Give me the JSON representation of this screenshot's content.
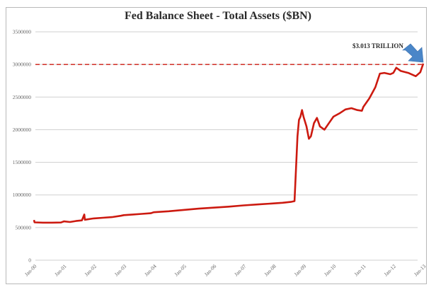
{
  "chart_data": {
    "type": "line",
    "title": "Fed Balance Sheet - Total Assets ($BN)",
    "xlabel": "",
    "ylabel": "",
    "ylim": [
      0,
      3500000
    ],
    "yticks": [
      0,
      500000,
      1000000,
      1500000,
      2000000,
      2500000,
      3000000,
      3500000
    ],
    "ytick_labels": [
      "0",
      "500000",
      "1000000",
      "1500000",
      "2000000",
      "2500000",
      "3000000",
      "3500000"
    ],
    "xtick_labels": [
      "Jan-00",
      "Jan-01",
      "Jan-02",
      "Jan-03",
      "Jan-04",
      "Jan-05",
      "Jan-06",
      "Jan-07",
      "Jan-08",
      "Jan-09",
      "Jan-10",
      "Jan-11",
      "Jan-12",
      "Jan-13"
    ],
    "grid": true,
    "legend": null,
    "series": [
      {
        "name": "Total Assets",
        "color": "#cc1a10",
        "points": [
          [
            2000.0,
            615000
          ],
          [
            2000.02,
            580000
          ],
          [
            2000.3,
            575000
          ],
          [
            2000.6,
            575000
          ],
          [
            2000.9,
            578000
          ],
          [
            2001.0,
            595000
          ],
          [
            2001.2,
            585000
          ],
          [
            2001.4,
            600000
          ],
          [
            2001.6,
            610000
          ],
          [
            2001.68,
            700000
          ],
          [
            2001.7,
            620000
          ],
          [
            2002.0,
            640000
          ],
          [
            2002.3,
            650000
          ],
          [
            2002.6,
            660000
          ],
          [
            2002.9,
            680000
          ],
          [
            2003.0,
            690000
          ],
          [
            2003.3,
            700000
          ],
          [
            2003.6,
            710000
          ],
          [
            2003.9,
            720000
          ],
          [
            2004.0,
            735000
          ],
          [
            2004.5,
            750000
          ],
          [
            2005.0,
            770000
          ],
          [
            2005.5,
            790000
          ],
          [
            2006.0,
            805000
          ],
          [
            2006.5,
            820000
          ],
          [
            2007.0,
            840000
          ],
          [
            2007.5,
            855000
          ],
          [
            2008.0,
            870000
          ],
          [
            2008.3,
            880000
          ],
          [
            2008.6,
            895000
          ],
          [
            2008.7,
            905000
          ],
          [
            2008.75,
            1400000
          ],
          [
            2008.8,
            1900000
          ],
          [
            2008.85,
            2150000
          ],
          [
            2008.9,
            2200000
          ],
          [
            2008.95,
            2300000
          ],
          [
            2009.0,
            2200000
          ],
          [
            2009.1,
            2050000
          ],
          [
            2009.18,
            1860000
          ],
          [
            2009.25,
            1900000
          ],
          [
            2009.35,
            2100000
          ],
          [
            2009.45,
            2180000
          ],
          [
            2009.55,
            2050000
          ],
          [
            2009.7,
            2000000
          ],
          [
            2009.85,
            2100000
          ],
          [
            2010.0,
            2200000
          ],
          [
            2010.2,
            2250000
          ],
          [
            2010.4,
            2310000
          ],
          [
            2010.6,
            2330000
          ],
          [
            2010.8,
            2300000
          ],
          [
            2010.95,
            2290000
          ],
          [
            2011.0,
            2350000
          ],
          [
            2011.2,
            2480000
          ],
          [
            2011.4,
            2650000
          ],
          [
            2011.55,
            2860000
          ],
          [
            2011.7,
            2870000
          ],
          [
            2011.9,
            2850000
          ],
          [
            2012.0,
            2870000
          ],
          [
            2012.1,
            2950000
          ],
          [
            2012.25,
            2900000
          ],
          [
            2012.5,
            2870000
          ],
          [
            2012.75,
            2820000
          ],
          [
            2012.9,
            2880000
          ],
          [
            2013.0,
            3013000
          ]
        ]
      }
    ],
    "reference_lines": [
      {
        "type": "horizontal",
        "value": 3000000,
        "style": "dashed",
        "color": "#cc1a10"
      }
    ],
    "annotations": [
      {
        "text": "$3.013 TRILLION",
        "x": "Jan-13",
        "y": 3013000,
        "arrow": "blue-arrow-down-right",
        "arrow_color": "#4a86c8"
      }
    ]
  }
}
